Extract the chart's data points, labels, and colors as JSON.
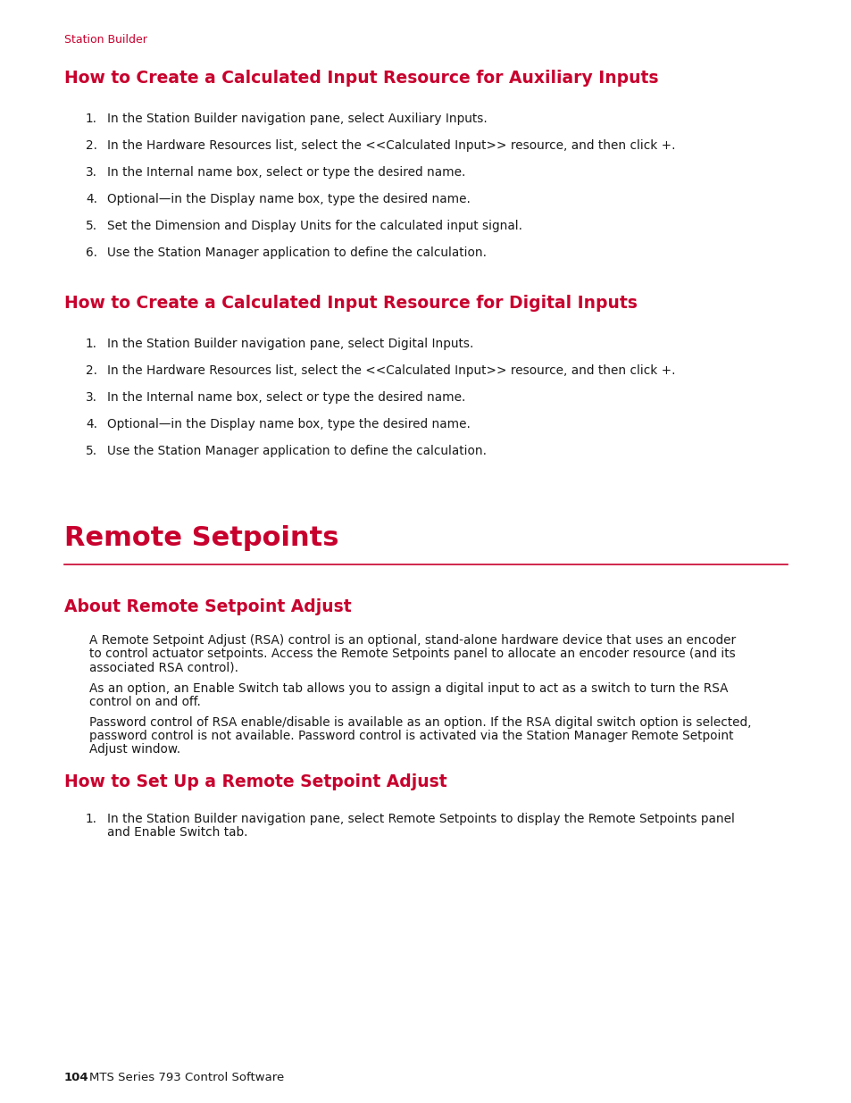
{
  "bg_color": "#ffffff",
  "red_color": "#C8002D",
  "black_color": "#1a1a1a",
  "breadcrumb": "Station Builder",
  "section1_title": "How to Create a Calculated Input Resource for Auxiliary Inputs",
  "section1_items": [
    "In the Station Builder navigation pane, select Auxiliary Inputs.",
    "In the Hardware Resources list, select the <<Calculated Input>> resource, and then click +.",
    "In the Internal name box, select or type the desired name.",
    "Optional—in the Display name box, type the desired name.",
    "Set the Dimension and Display Units for the calculated input signal.",
    "Use the Station Manager application to define the calculation."
  ],
  "section2_title": "How to Create a Calculated Input Resource for Digital Inputs",
  "section2_items": [
    "In the Station Builder navigation pane, select Digital Inputs.",
    "In the Hardware Resources list, select the <<Calculated Input>> resource, and then click +.",
    "In the Internal name box, select or type the desired name.",
    "Optional—in the Display name box, type the desired name.",
    "Use the Station Manager application to define the calculation."
  ],
  "major_title": "Remote Setpoints",
  "section3_title": "About Remote Setpoint Adjust",
  "section3_paragraphs": [
    "A Remote Setpoint Adjust (RSA) control is an optional, stand-alone hardware device that uses an encoder\nto control actuator setpoints. Access the Remote Setpoints panel to allocate an encoder resource (and its\nassociated RSA control).",
    "As an option, an Enable Switch tab allows you to assign a digital input to act as a switch to turn the RSA\ncontrol on and off.",
    "Password control of RSA enable/disable is available as an option. If the RSA digital switch option is selected,\npassword control is not available. Password control is activated via the Station Manager Remote Setpoint\nAdjust window."
  ],
  "section4_title": "How to Set Up a Remote Setpoint Adjust",
  "section4_items": [
    [
      "In the Station Builder navigation pane, select Remote Setpoints to display the Remote Setpoints panel",
      "and Enable Switch tab."
    ]
  ],
  "footer_num": "104",
  "footer_text": "MTS Series 793 Control Software"
}
